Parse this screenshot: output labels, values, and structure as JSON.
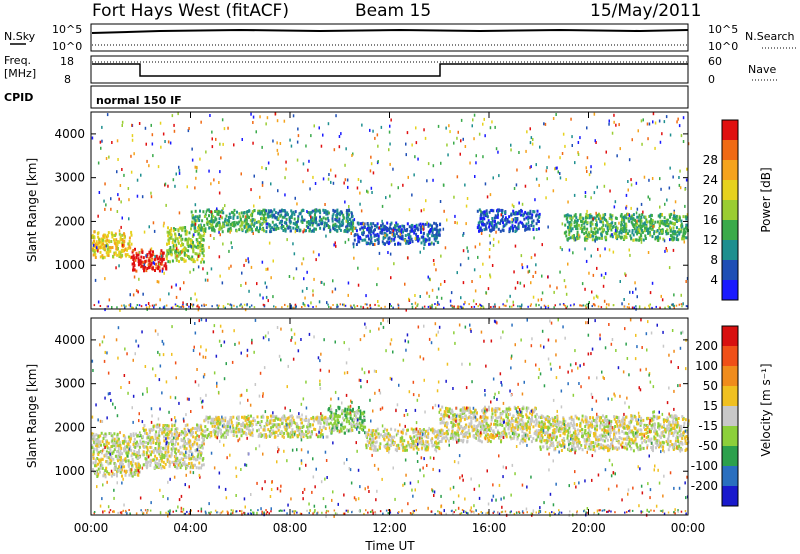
{
  "header": {
    "radar": "Fort Hays West (fitACF)",
    "beam": "Beam 15",
    "date": "15/May/2011"
  },
  "top_panels": {
    "nsky_label": "N.Sky",
    "nsky_ticks": [
      "10^5",
      "10^0"
    ],
    "nsearch_label": "N.Search",
    "nsearch_ticks": [
      "10^5",
      "10^0"
    ],
    "freq_label": "Freq.",
    "freq_unit": "[MHz]",
    "freq_ticks": [
      "18",
      "8"
    ],
    "nave_label": "Nave",
    "nave_ticks": [
      "60",
      "0"
    ],
    "cpid_label": "CPID",
    "cpid_text": "normal 150 IF"
  },
  "chart_data": [
    {
      "type": "heatmap",
      "title": "",
      "xlabel": "",
      "ylabel": "Slant Range [km]",
      "ylim": [
        0,
        4500
      ],
      "y_ticks": [
        1000,
        2000,
        3000,
        4000
      ],
      "x_ticks": [
        "00:00",
        "04:00",
        "08:00",
        "12:00",
        "16:00",
        "20:00",
        "00:00"
      ],
      "colorbar": {
        "label": "Power [dB]",
        "ticks": [
          "4",
          "8",
          "12",
          "16",
          "20",
          "24",
          "28"
        ],
        "colors": [
          "#1a1aff",
          "#1f4fb5",
          "#1e8f8f",
          "#3aaa4a",
          "#9acd32",
          "#e6d21e",
          "#f5a31c",
          "#f06a14",
          "#e01010"
        ]
      },
      "bands": [
        {
          "t0": 0.0,
          "t1": 1.6,
          "r0": 1200,
          "r1": 1800,
          "level": 5
        },
        {
          "t0": 1.6,
          "t1": 3.0,
          "r0": 900,
          "r1": 1400,
          "level": 8
        },
        {
          "t0": 3.0,
          "t1": 4.5,
          "r0": 1100,
          "r1": 1900,
          "level": 4
        },
        {
          "t0": 4.0,
          "t1": 7.0,
          "r0": 1800,
          "r1": 2300,
          "level": 3
        },
        {
          "t0": 7.0,
          "t1": 10.5,
          "r0": 1800,
          "r1": 2300,
          "level": 2
        },
        {
          "t0": 10.5,
          "t1": 14.0,
          "r0": 1500,
          "r1": 2000,
          "level": 1
        },
        {
          "t0": 15.5,
          "t1": 18.0,
          "r0": 1800,
          "r1": 2300,
          "level": 1
        },
        {
          "t0": 19.0,
          "t1": 24.0,
          "r0": 1600,
          "r1": 2200,
          "level": 3
        }
      ]
    },
    {
      "type": "heatmap",
      "title": "",
      "xlabel": "Time UT",
      "ylabel": "Slant Range [km]",
      "ylim": [
        0,
        4500
      ],
      "y_ticks": [
        1000,
        2000,
        3000,
        4000
      ],
      "x_ticks": [
        "00:00",
        "04:00",
        "08:00",
        "12:00",
        "16:00",
        "20:00",
        "00:00"
      ],
      "colorbar": {
        "label": "Velocity [m s⁻¹]",
        "ticks": [
          "200",
          "100",
          "50",
          "15",
          "-15",
          "-50",
          "-100",
          "-200"
        ],
        "colors": [
          "#1a1acc",
          "#2a6fbf",
          "#2ca04c",
          "#8ccf3a",
          "#c8c8c8",
          "#f0c020",
          "#f08c1c",
          "#f05018",
          "#d81010"
        ]
      },
      "bands": [
        {
          "t0": 0.0,
          "t1": 2.0,
          "r0": 900,
          "r1": 1900,
          "level": 4
        },
        {
          "t0": 2.0,
          "t1": 4.5,
          "r0": 1100,
          "r1": 2100,
          "level": 4
        },
        {
          "t0": 4.5,
          "t1": 9.5,
          "r0": 1800,
          "r1": 2300,
          "level": 4
        },
        {
          "t0": 9.5,
          "t1": 11.0,
          "r0": 1900,
          "r1": 2500,
          "level": 3
        },
        {
          "t0": 11.0,
          "t1": 14.0,
          "r0": 1500,
          "r1": 2000,
          "level": 4
        },
        {
          "t0": 14.0,
          "t1": 18.0,
          "r0": 1700,
          "r1": 2500,
          "level": 4
        },
        {
          "t0": 18.0,
          "t1": 24.0,
          "r0": 1500,
          "r1": 2300,
          "level": 4
        }
      ]
    }
  ]
}
